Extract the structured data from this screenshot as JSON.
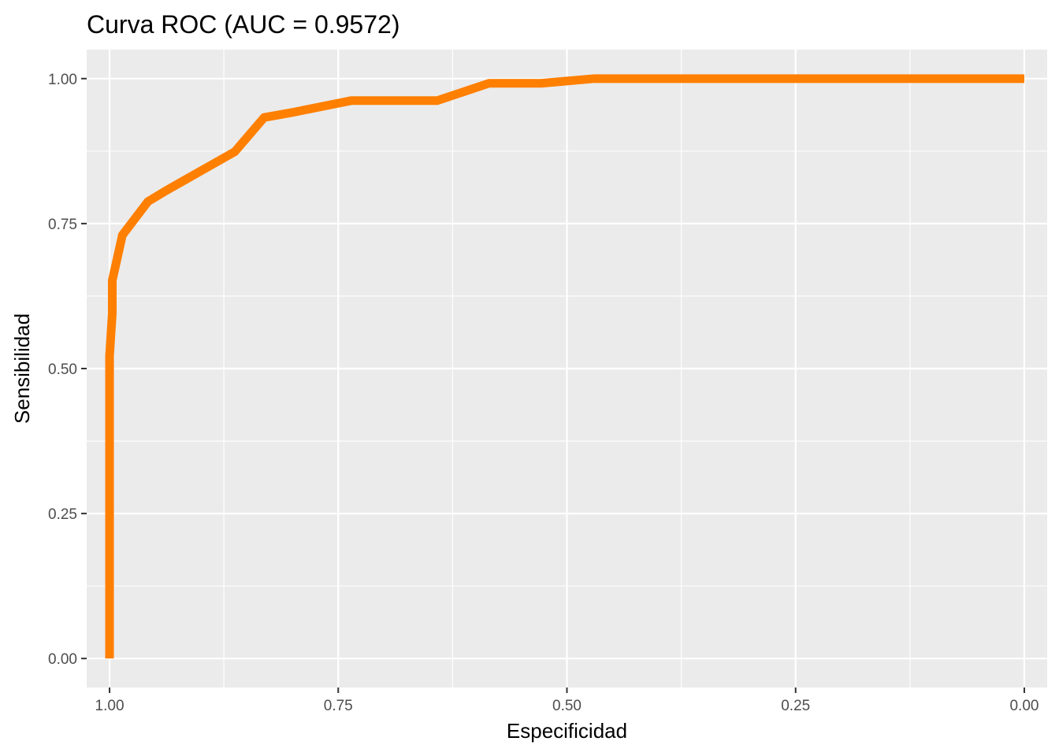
{
  "chart_data": {
    "type": "line",
    "title": "Curva ROC (AUC = 0.9572)",
    "xlabel": "Especificidad",
    "ylabel": "Sensibilidad",
    "x_reversed": true,
    "xlim": [
      1.025,
      -0.025
    ],
    "ylim": [
      -0.05,
      1.05
    ],
    "grid": true,
    "panel_background": "#ebebeb",
    "grid_color": "#ffffff",
    "xticks": [
      1.0,
      0.75,
      0.5,
      0.25,
      0.0
    ],
    "xtick_labels": [
      "1.00",
      "0.75",
      "0.50",
      "0.25",
      "0.00"
    ],
    "yticks": [
      0.0,
      0.25,
      0.5,
      0.75,
      1.0
    ],
    "ytick_labels": [
      "0.00",
      "0.25",
      "0.50",
      "0.75",
      "1.00"
    ],
    "series": [
      {
        "color": "#ff7f00",
        "x": [
          1.0,
          1.0,
          0.997,
          0.997,
          0.986,
          0.958,
          0.938,
          0.863,
          0.831,
          0.799,
          0.736,
          0.642,
          0.585,
          0.528,
          0.47,
          0.0
        ],
        "y": [
          0.0,
          0.522,
          0.595,
          0.652,
          0.73,
          0.788,
          0.807,
          0.874,
          0.933,
          0.942,
          0.962,
          0.962,
          0.992,
          0.992,
          1.0,
          1.0
        ]
      }
    ]
  }
}
